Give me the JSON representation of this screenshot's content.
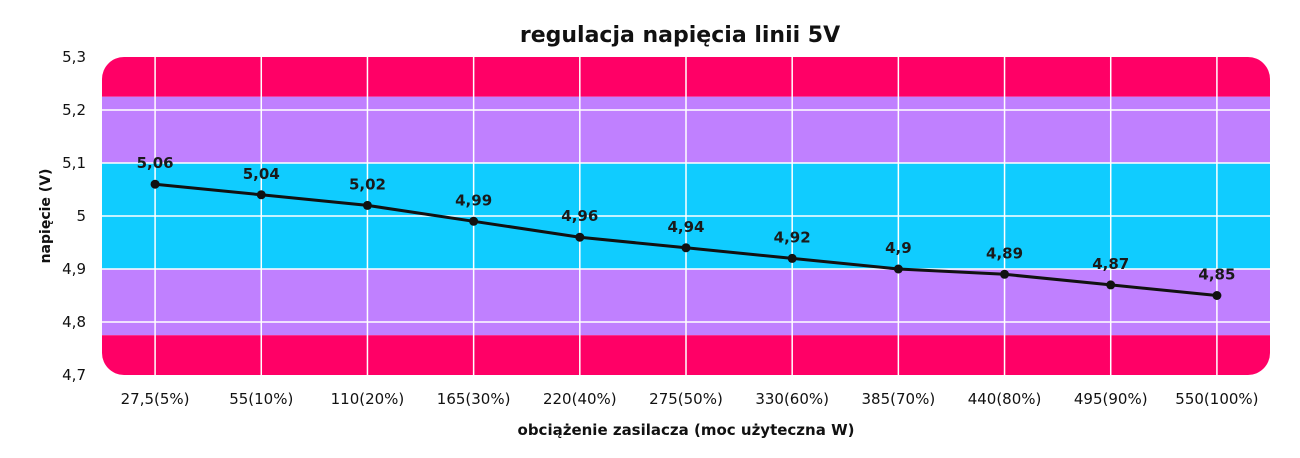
{
  "chart_data": {
    "type": "line",
    "title": "regulacja napięcia linii 5V",
    "xlabel": "obciążenie zasilacza (moc użyteczna W)",
    "ylabel": "napięcie (V)",
    "categories": [
      "27,5(5%)",
      "55(10%)",
      "110(20%)",
      "165(30%)",
      "220(40%)",
      "275(50%)",
      "330(60%)",
      "385(70%)",
      "440(80%)",
      "495(90%)",
      "550(100%)"
    ],
    "series": [
      {
        "values": [
          5.06,
          5.04,
          5.02,
          4.99,
          4.96,
          4.94,
          4.92,
          4.9,
          4.89,
          4.87,
          4.85
        ],
        "data_labels": [
          "5,06",
          "5,04",
          "5,02",
          "4,99",
          "4,96",
          "4,94",
          "4,92",
          "4,9",
          "4,89",
          "4,87",
          "4,85"
        ]
      }
    ],
    "ylim": [
      4.7,
      5.3
    ],
    "yticks": [
      5.3,
      5.2,
      5.1,
      5.0,
      4.9,
      4.8,
      4.7
    ],
    "ytick_labels": [
      "5,3",
      "5,2",
      "5,1",
      "5",
      "4,9",
      "4,8",
      "4,7"
    ],
    "bands": [
      {
        "from": 5.225,
        "to": 5.3,
        "color": "#ff0066"
      },
      {
        "from": 5.1,
        "to": 5.225,
        "color": "#c080ff"
      },
      {
        "from": 4.9,
        "to": 5.1,
        "color": "#10ccff"
      },
      {
        "from": 4.775,
        "to": 4.9,
        "color": "#c080ff"
      },
      {
        "from": 4.7,
        "to": 4.775,
        "color": "#ff0066"
      }
    ],
    "line_color": "#111111",
    "grid": true,
    "legend": "none"
  }
}
